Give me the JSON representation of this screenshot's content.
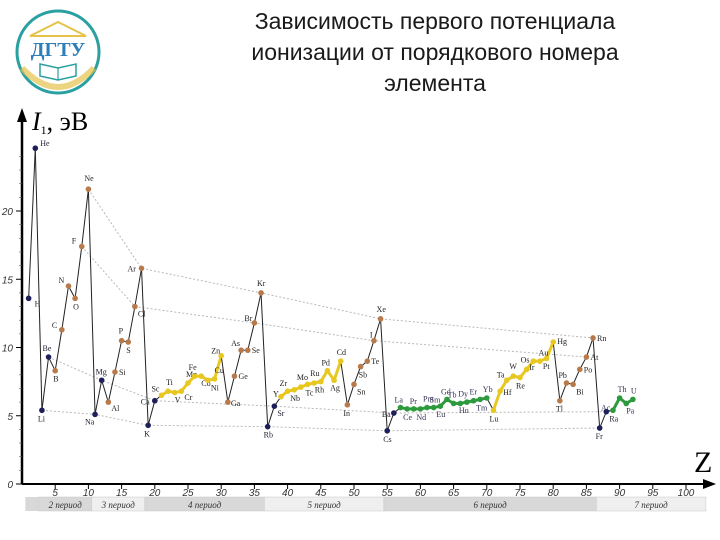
{
  "slide": {
    "title_lines": [
      "Зависимость первого потенциала",
      "ионизации от порядкового номера",
      "элемента"
    ],
    "logo_text": "ДГТУ"
  },
  "colors": {
    "s_block": "#1e1e5a",
    "p_block": "#b87a4b",
    "d_block": "#e8c820",
    "f_block": "#2e9a3e",
    "period_band_dark": "#d8d8d8",
    "period_band_light": "#efefef",
    "trend_line": "#b8b8b8"
  },
  "chart_data": {
    "type": "line",
    "title": "Зависимость первого потенциала ионизации от порядкового номера элемента",
    "xlabel": "Z",
    "ylabel": "I1, эВ",
    "ylabel_main": "I",
    "ylabel_sub": "1",
    "ylabel_unit": ", эВ",
    "xlim": [
      0,
      104
    ],
    "ylim": [
      0,
      25
    ],
    "x_ticks": [
      5,
      10,
      15,
      20,
      25,
      30,
      35,
      40,
      45,
      50,
      55,
      60,
      65,
      70,
      75,
      80,
      85,
      90,
      95,
      100
    ],
    "y_ticks": [
      0,
      5,
      10,
      15,
      20
    ],
    "y_tick_labels": [
      "0",
      "5",
      "10",
      "15",
      "20"
    ],
    "periods": [
      {
        "label": "2 период",
        "z_start": 2.5,
        "z_end": 10.5
      },
      {
        "label": "3 период",
        "z_start": 10.5,
        "z_end": 18.5
      },
      {
        "label": "4 период",
        "z_start": 18.5,
        "z_end": 36.5
      },
      {
        "label": "5 период",
        "z_start": 36.5,
        "z_end": 54.5
      },
      {
        "label": "6 период",
        "z_start": 54.5,
        "z_end": 86.5
      },
      {
        "label": "7 период",
        "z_start": 86.5,
        "z_end": 103
      }
    ],
    "series": [
      {
        "name": "elements",
        "points": [
          {
            "z": 1,
            "sym": "H",
            "ie": 13.6,
            "block": "s"
          },
          {
            "z": 2,
            "sym": "He",
            "ie": 24.6,
            "block": "s"
          },
          {
            "z": 3,
            "sym": "Li",
            "ie": 5.4,
            "block": "s"
          },
          {
            "z": 4,
            "sym": "Be",
            "ie": 9.3,
            "block": "s"
          },
          {
            "z": 5,
            "sym": "B",
            "ie": 8.3,
            "block": "p"
          },
          {
            "z": 6,
            "sym": "C",
            "ie": 11.3,
            "block": "p"
          },
          {
            "z": 7,
            "sym": "N",
            "ie": 14.5,
            "block": "p"
          },
          {
            "z": 8,
            "sym": "O",
            "ie": 13.6,
            "block": "p"
          },
          {
            "z": 9,
            "sym": "F",
            "ie": 17.4,
            "block": "p"
          },
          {
            "z": 10,
            "sym": "Ne",
            "ie": 21.6,
            "block": "p"
          },
          {
            "z": 11,
            "sym": "Na",
            "ie": 5.1,
            "block": "s"
          },
          {
            "z": 12,
            "sym": "Mg",
            "ie": 7.6,
            "block": "s"
          },
          {
            "z": 13,
            "sym": "Al",
            "ie": 6.0,
            "block": "p"
          },
          {
            "z": 14,
            "sym": "Si",
            "ie": 8.2,
            "block": "p"
          },
          {
            "z": 15,
            "sym": "P",
            "ie": 10.5,
            "block": "p"
          },
          {
            "z": 16,
            "sym": "S",
            "ie": 10.4,
            "block": "p"
          },
          {
            "z": 17,
            "sym": "Cl",
            "ie": 13.0,
            "block": "p"
          },
          {
            "z": 18,
            "sym": "Ar",
            "ie": 15.8,
            "block": "p"
          },
          {
            "z": 19,
            "sym": "K",
            "ie": 4.3,
            "block": "s"
          },
          {
            "z": 20,
            "sym": "Ca",
            "ie": 6.1,
            "block": "s"
          },
          {
            "z": 21,
            "sym": "Sc",
            "ie": 6.5,
            "block": "d"
          },
          {
            "z": 22,
            "sym": "Ti",
            "ie": 6.8,
            "block": "d"
          },
          {
            "z": 23,
            "sym": "V",
            "ie": 6.7,
            "block": "d"
          },
          {
            "z": 24,
            "sym": "Cr",
            "ie": 6.8,
            "block": "d"
          },
          {
            "z": 25,
            "sym": "Mn",
            "ie": 7.4,
            "block": "d"
          },
          {
            "z": 26,
            "sym": "Fe",
            "ie": 7.9,
            "block": "d"
          },
          {
            "z": 27,
            "sym": "Co",
            "ie": 7.9,
            "block": "d"
          },
          {
            "z": 28,
            "sym": "Ni",
            "ie": 7.6,
            "block": "d"
          },
          {
            "z": 29,
            "sym": "Cu",
            "ie": 7.7,
            "block": "d"
          },
          {
            "z": 30,
            "sym": "Zn",
            "ie": 9.4,
            "block": "d"
          },
          {
            "z": 31,
            "sym": "Ga",
            "ie": 6.0,
            "block": "p"
          },
          {
            "z": 32,
            "sym": "Ge",
            "ie": 7.9,
            "block": "p"
          },
          {
            "z": 33,
            "sym": "As",
            "ie": 9.8,
            "block": "p"
          },
          {
            "z": 34,
            "sym": "Se",
            "ie": 9.8,
            "block": "p"
          },
          {
            "z": 35,
            "sym": "Br",
            "ie": 11.8,
            "block": "p"
          },
          {
            "z": 36,
            "sym": "Kr",
            "ie": 14.0,
            "block": "p"
          },
          {
            "z": 37,
            "sym": "Rb",
            "ie": 4.2,
            "block": "s"
          },
          {
            "z": 38,
            "sym": "Sr",
            "ie": 5.7,
            "block": "s"
          },
          {
            "z": 39,
            "sym": "Y",
            "ie": 6.4,
            "block": "d"
          },
          {
            "z": 40,
            "sym": "Zr",
            "ie": 6.8,
            "block": "d"
          },
          {
            "z": 41,
            "sym": "Nb",
            "ie": 6.9,
            "block": "d"
          },
          {
            "z": 42,
            "sym": "Mo",
            "ie": 7.1,
            "block": "d"
          },
          {
            "z": 43,
            "sym": "Tc",
            "ie": 7.3,
            "block": "d"
          },
          {
            "z": 44,
            "sym": "Ru",
            "ie": 7.4,
            "block": "d"
          },
          {
            "z": 45,
            "sym": "Rh",
            "ie": 7.5,
            "block": "d"
          },
          {
            "z": 46,
            "sym": "Pd",
            "ie": 8.3,
            "block": "d"
          },
          {
            "z": 47,
            "sym": "Ag",
            "ie": 7.6,
            "block": "d"
          },
          {
            "z": 48,
            "sym": "Cd",
            "ie": 9.0,
            "block": "d"
          },
          {
            "z": 49,
            "sym": "In",
            "ie": 5.8,
            "block": "p"
          },
          {
            "z": 50,
            "sym": "Sn",
            "ie": 7.3,
            "block": "p"
          },
          {
            "z": 51,
            "sym": "Sb",
            "ie": 8.6,
            "block": "p"
          },
          {
            "z": 52,
            "sym": "Te",
            "ie": 9.0,
            "block": "p"
          },
          {
            "z": 53,
            "sym": "I",
            "ie": 10.5,
            "block": "p"
          },
          {
            "z": 54,
            "sym": "Xe",
            "ie": 12.1,
            "block": "p"
          },
          {
            "z": 55,
            "sym": "Cs",
            "ie": 3.9,
            "block": "s"
          },
          {
            "z": 56,
            "sym": "Ba",
            "ie": 5.2,
            "block": "s"
          },
          {
            "z": 57,
            "sym": "La",
            "ie": 5.6,
            "block": "f"
          },
          {
            "z": 58,
            "sym": "Ce",
            "ie": 5.5,
            "block": "f"
          },
          {
            "z": 59,
            "sym": "Pr",
            "ie": 5.5,
            "block": "f"
          },
          {
            "z": 60,
            "sym": "Nd",
            "ie": 5.5,
            "block": "f"
          },
          {
            "z": 61,
            "sym": "Pm",
            "ie": 5.6,
            "block": "f"
          },
          {
            "z": 62,
            "sym": "Sm",
            "ie": 5.6,
            "block": "f"
          },
          {
            "z": 63,
            "sym": "Eu",
            "ie": 5.7,
            "block": "f"
          },
          {
            "z": 64,
            "sym": "Gd",
            "ie": 6.2,
            "block": "f"
          },
          {
            "z": 65,
            "sym": "Tb",
            "ie": 5.9,
            "block": "f"
          },
          {
            "z": 66,
            "sym": "Dy",
            "ie": 5.9,
            "block": "f"
          },
          {
            "z": 67,
            "sym": "Ho",
            "ie": 6.0,
            "block": "f"
          },
          {
            "z": 68,
            "sym": "Er",
            "ie": 6.1,
            "block": "f"
          },
          {
            "z": 69,
            "sym": "Tm",
            "ie": 6.2,
            "block": "f"
          },
          {
            "z": 70,
            "sym": "Yb",
            "ie": 6.3,
            "block": "f"
          },
          {
            "z": 71,
            "sym": "Lu",
            "ie": 5.4,
            "block": "d"
          },
          {
            "z": 72,
            "sym": "Hf",
            "ie": 6.8,
            "block": "d"
          },
          {
            "z": 73,
            "sym": "Ta",
            "ie": 7.6,
            "block": "d"
          },
          {
            "z": 74,
            "sym": "W",
            "ie": 7.9,
            "block": "d"
          },
          {
            "z": 75,
            "sym": "Re",
            "ie": 7.8,
            "block": "d"
          },
          {
            "z": 76,
            "sym": "Os",
            "ie": 8.4,
            "block": "d"
          },
          {
            "z": 77,
            "sym": "Ir",
            "ie": 9.0,
            "block": "d"
          },
          {
            "z": 78,
            "sym": "Pt",
            "ie": 9.0,
            "block": "d"
          },
          {
            "z": 79,
            "sym": "Au",
            "ie": 9.2,
            "block": "d"
          },
          {
            "z": 80,
            "sym": "Hg",
            "ie": 10.4,
            "block": "d"
          },
          {
            "z": 81,
            "sym": "Tl",
            "ie": 6.1,
            "block": "p"
          },
          {
            "z": 82,
            "sym": "Pb",
            "ie": 7.4,
            "block": "p"
          },
          {
            "z": 83,
            "sym": "Bi",
            "ie": 7.3,
            "block": "p"
          },
          {
            "z": 84,
            "sym": "Po",
            "ie": 8.4,
            "block": "p"
          },
          {
            "z": 85,
            "sym": "At",
            "ie": 9.3,
            "block": "p"
          },
          {
            "z": 86,
            "sym": "Rn",
            "ie": 10.7,
            "block": "p"
          },
          {
            "z": 87,
            "sym": "Fr",
            "ie": 4.1,
            "block": "s"
          },
          {
            "z": 88,
            "sym": "Ra",
            "ie": 5.3,
            "block": "s"
          },
          {
            "z": 89,
            "sym": "Ac",
            "ie": 5.4,
            "block": "f"
          },
          {
            "z": 90,
            "sym": "Th",
            "ie": 6.3,
            "block": "f"
          },
          {
            "z": 91,
            "sym": "Pa",
            "ie": 5.9,
            "block": "f"
          },
          {
            "z": 92,
            "sym": "U",
            "ie": 6.2,
            "block": "f"
          }
        ]
      }
    ],
    "trend_lines": [
      {
        "name": "noble-gases",
        "z": [
          10,
          18,
          36,
          54,
          86
        ]
      },
      {
        "name": "halogens",
        "z": [
          9,
          17,
          35,
          53,
          85
        ]
      },
      {
        "name": "alkali-metals",
        "z": [
          3,
          11,
          19,
          37,
          55,
          87
        ]
      },
      {
        "name": "alkaline-earth",
        "z": [
          4,
          12,
          20,
          38,
          56,
          88
        ]
      }
    ],
    "grid": false,
    "legend": "none"
  }
}
